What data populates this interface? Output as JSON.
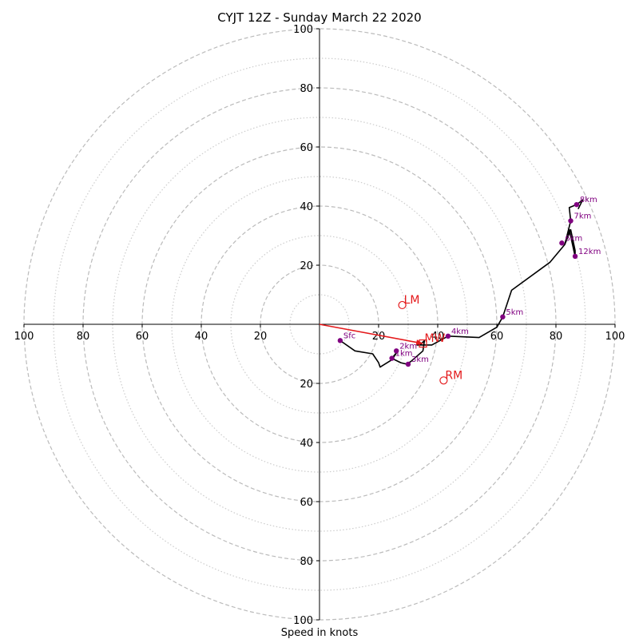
{
  "chart_data": {
    "type": "scatter",
    "title": "CYJT 12Z - Sunday March 22 2020",
    "xlabel": "Speed in knots",
    "ylabel": "",
    "xlim": [
      -100,
      100
    ],
    "ylim": [
      -100,
      100
    ],
    "grid": true,
    "tick_values": [
      -100,
      -80,
      -60,
      -40,
      -20,
      20,
      40,
      60,
      80,
      100
    ],
    "tick_labels": [
      "100",
      "80",
      "60",
      "40",
      "20",
      "20",
      "40",
      "60",
      "80",
      "100"
    ],
    "colors": {
      "hodograph": "#000000",
      "height_points": "#800080",
      "storm_motion": "#e41a1c",
      "grid_major": "#bbbbbb",
      "grid_minor": "#cccccc"
    },
    "hodograph_trace": {
      "name": "",
      "points": [
        [
          7,
          -5.5
        ],
        [
          12,
          -9
        ],
        [
          18,
          -10
        ],
        [
          20,
          -13
        ],
        [
          20.5,
          -14.5
        ],
        [
          24.5,
          -12
        ],
        [
          26.5,
          -9
        ],
        [
          24.5,
          -11.5
        ],
        [
          27.5,
          -13
        ],
        [
          29.5,
          -13.5
        ],
        [
          31,
          -12.5
        ],
        [
          35,
          -9
        ],
        [
          35.5,
          -5.5
        ],
        [
          34,
          -7
        ],
        [
          33,
          -7
        ],
        [
          38,
          -7
        ],
        [
          43.5,
          -4
        ],
        [
          54,
          -4.5
        ],
        [
          60,
          -1
        ],
        [
          62,
          2.5
        ],
        [
          65,
          11.5
        ],
        [
          78,
          21
        ],
        [
          83,
          27
        ],
        [
          85,
          32
        ],
        [
          86.5,
          25
        ],
        [
          86.5,
          23
        ],
        [
          84.5,
          32
        ],
        [
          83,
          27
        ],
        [
          85,
          35
        ],
        [
          84.5,
          39.5
        ],
        [
          87,
          40.5
        ],
        [
          89,
          42
        ],
        [
          87.5,
          39
        ]
      ]
    },
    "height_markers": [
      {
        "label": "Sfc",
        "u": 7,
        "v": -5.5
      },
      {
        "label": "2km",
        "u": 26,
        "v": -9
      },
      {
        "label": "1km",
        "u": 24.5,
        "v": -11.5
      },
      {
        "label": "3km",
        "u": 30,
        "v": -13.5
      },
      {
        "label": "4km",
        "u": 43.5,
        "v": -4
      },
      {
        "label": "5km",
        "u": 62,
        "v": 2.5
      },
      {
        "label": "6km",
        "u": 82,
        "v": 27.5
      },
      {
        "label": "7km",
        "u": 85,
        "v": 35
      },
      {
        "label": "8km",
        "u": 87,
        "v": 40.5
      },
      {
        "label": "12km",
        "u": 86.5,
        "v": 23
      }
    ],
    "storm_motion": [
      {
        "label": "LM",
        "u": 28,
        "v": 6.5
      },
      {
        "label": "RM",
        "u": 42,
        "v": -19
      },
      {
        "label": "MW",
        "u": 35,
        "v": -6.5
      }
    ],
    "mean_wind_vector": {
      "from": [
        0,
        0
      ],
      "to": [
        35,
        -6.5
      ]
    }
  }
}
